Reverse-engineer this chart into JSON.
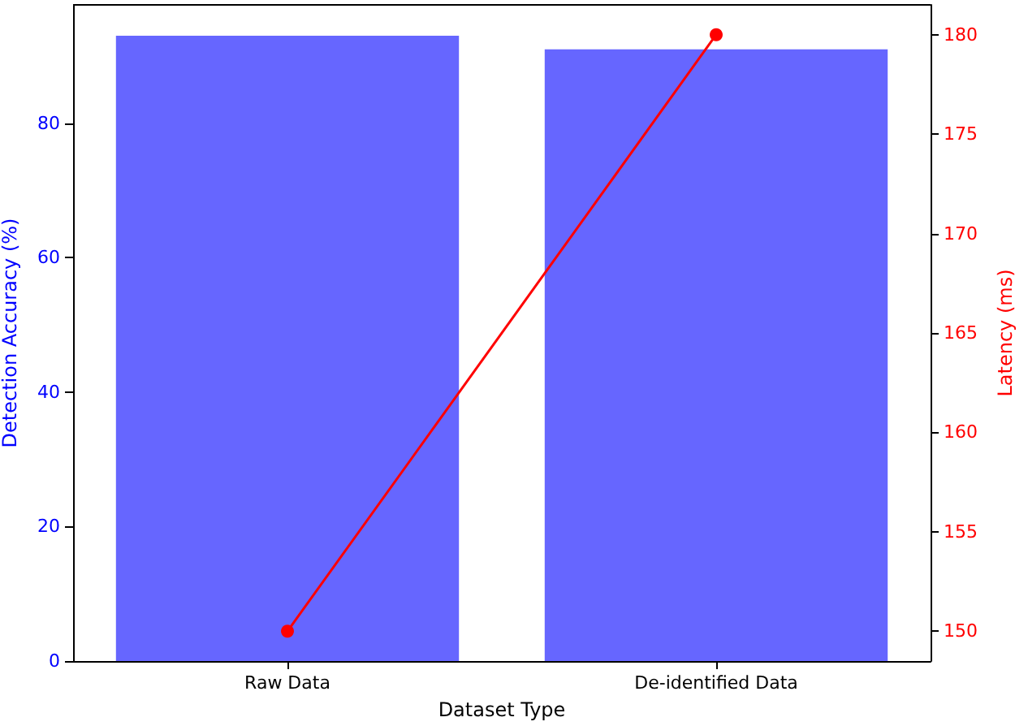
{
  "chart_data": {
    "type": "bar",
    "xlabel": "Dataset Type",
    "ylabel": "Detection Accuracy (%)",
    "y2label": "Latency (ms)",
    "categories": [
      "Raw Data",
      "De-identified Data"
    ],
    "series": [
      {
        "color": "#6666ff",
        "values": [
          93,
          91
        ]
      },
      {
        "type": "line",
        "axis": "y2",
        "color": "#ff0000",
        "values": [
          150,
          180
        ],
        "marker": "circle"
      }
    ],
    "ylim": [
      0,
      97.6
    ],
    "yticks": [
      0,
      20,
      40,
      60,
      80
    ],
    "y2lim": [
      148.5,
      181.5
    ],
    "y2ticks": [
      150,
      155,
      160,
      165,
      170,
      175,
      180
    ],
    "grid": false
  }
}
